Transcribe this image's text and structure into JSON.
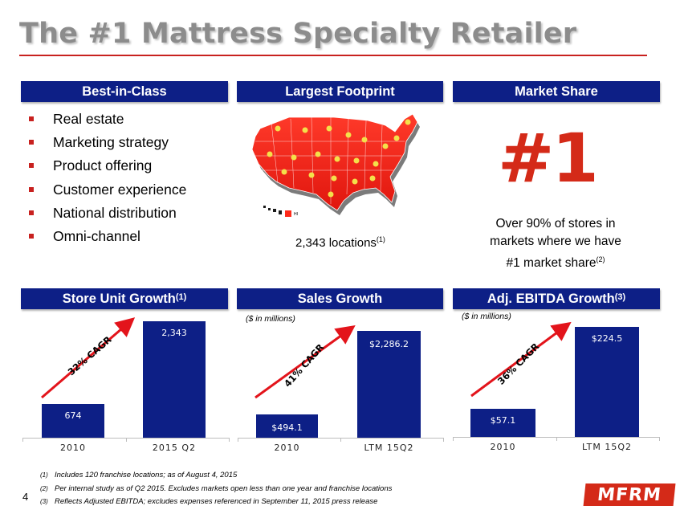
{
  "title": "The #1 Mattress Specialty Retailer",
  "sections": {
    "best_in_class": "Best-in-Class",
    "largest_footprint": "Largest Footprint",
    "market_share": "Market Share",
    "store_unit_growth": "Store Unit Growth",
    "store_unit_growth_sup": "(1)",
    "sales_growth": "Sales Growth",
    "adj_ebitda_growth": "Adj. EBITDA Growth",
    "adj_ebitda_growth_sup": "(3)"
  },
  "bullets": [
    "Real estate",
    "Marketing strategy",
    "Product offering",
    "Customer experience",
    "National distribution",
    "Omni-channel"
  ],
  "footprint": {
    "locations": "2,343 locations",
    "locations_sup": "(1)",
    "map_state": "HI"
  },
  "market_share": {
    "big_number": "#1",
    "line1": "Over 90% of stores in",
    "line2": "markets where we have",
    "line3": "#1 market share",
    "sup": "(2)"
  },
  "units_note": "($ in millions)",
  "colors": {
    "accent_red": "#d42a18",
    "navy": "#0d1f86",
    "title_gray": "#8c8c8c",
    "map_red": "#ff2020"
  },
  "chart_data": [
    {
      "type": "bar",
      "title": "Store Unit Growth",
      "categories": [
        "2010",
        "2015 Q2"
      ],
      "values": [
        674,
        2343
      ],
      "value_labels": [
        "674",
        "2,343"
      ],
      "cagr": "32% CAGR"
    },
    {
      "type": "bar",
      "title": "Sales Growth",
      "subtitle": "($ in millions)",
      "categories": [
        "2010",
        "LTM 15Q2"
      ],
      "values": [
        494.1,
        2286.2
      ],
      "value_labels": [
        "$494.1",
        "$2,286.2"
      ],
      "cagr": "41% CAGR"
    },
    {
      "type": "bar",
      "title": "Adj. EBITDA Growth",
      "subtitle": "($ in millions)",
      "categories": [
        "2010",
        "LTM 15Q2"
      ],
      "values": [
        57.1,
        224.5
      ],
      "value_labels": [
        "$57.1",
        "$224.5"
      ],
      "cagr": "36% CAGR"
    }
  ],
  "footnotes": [
    {
      "num": "(1)",
      "text": "Includes 120 franchise locations; as of August 4, 2015"
    },
    {
      "num": "(2)",
      "text": "Per internal study as of Q2 2015. Excludes markets open less than one year and franchise locations"
    },
    {
      "num": "(3)",
      "text": "Reflects Adjusted EBITDA; excludes expenses referenced in September 11, 2015 press release"
    }
  ],
  "page_number": "4",
  "logo": "MFRM"
}
